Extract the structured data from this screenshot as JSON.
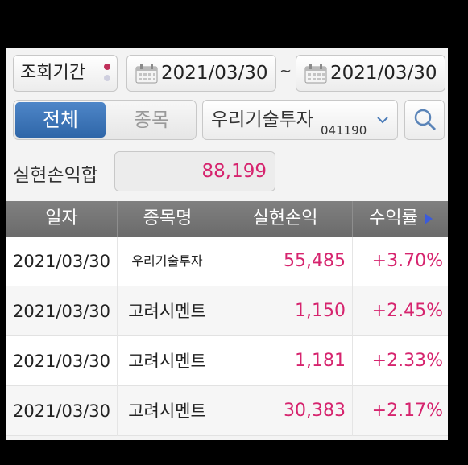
{
  "filter": {
    "period_label": "조회기간",
    "start_date": "2021/03/30",
    "tilde": "~",
    "end_date": "2021/03/30"
  },
  "segment": {
    "all": "전체",
    "stock": "종목"
  },
  "stock": {
    "name": "우리기술투자",
    "code": "041190"
  },
  "summary": {
    "label": "실현손익합",
    "value": "88,199"
  },
  "table": {
    "headers": [
      "일자",
      "종목명",
      "실현손익",
      "수익률"
    ],
    "rows": [
      {
        "date": "2021/03/30",
        "name": "우리기술투자",
        "profit": "55,485",
        "rate": "+3.70%"
      },
      {
        "date": "2021/03/30",
        "name": "고려시멘트",
        "profit": "1,150",
        "rate": "+2.45%"
      },
      {
        "date": "2021/03/30",
        "name": "고려시멘트",
        "profit": "1,181",
        "rate": "+2.33%"
      },
      {
        "date": "2021/03/30",
        "name": "고려시멘트",
        "profit": "30,383",
        "rate": "+2.17%"
      }
    ]
  },
  "colors": {
    "accent_blue": "#3a72b8",
    "profit_pink": "#d6246e",
    "header_gray": "#777777"
  }
}
